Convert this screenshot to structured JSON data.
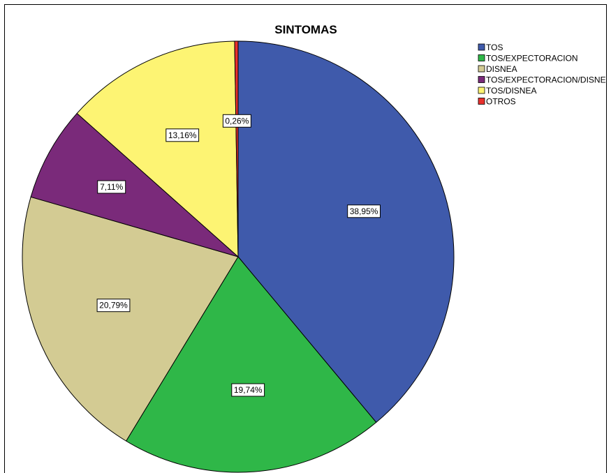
{
  "chart_data": {
    "type": "pie",
    "title": "SINTOMAS",
    "legend_position": "top-right",
    "categories": [
      "TOS",
      "TOS/EXPECTORACION",
      "DISNEA",
      "TOS/EXPECTORACION/DISNEA",
      "TOS/DISNEA",
      "OTROS"
    ],
    "legend_labels": [
      "TOS",
      "TOS/EXPECTORACION",
      "DISNEA",
      "TOS/EXPECTORACION/DISNE",
      "TOS/DISNEA",
      "OTROS"
    ],
    "values": [
      38.95,
      19.74,
      20.79,
      7.11,
      13.16,
      0.26
    ],
    "value_labels": [
      "38,95%",
      "19,74%",
      "20,79%",
      "7,11%",
      "13,16%",
      "0,26%"
    ],
    "colors": [
      "#3f5aab",
      "#2fb748",
      "#d3cb93",
      "#7a2a7a",
      "#fdf473",
      "#e8302d"
    ],
    "start_angle_deg": 0,
    "direction": "clockwise"
  }
}
